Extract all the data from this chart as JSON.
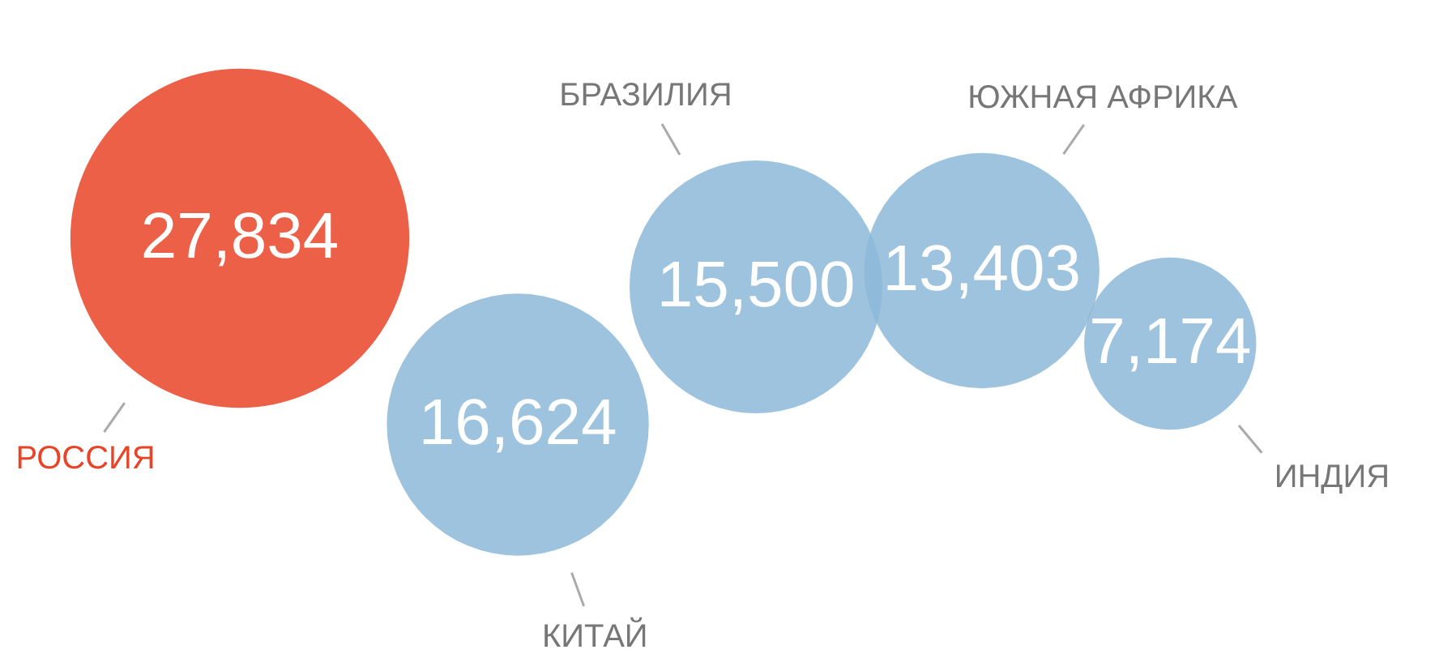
{
  "chart_data": {
    "type": "other",
    "categories": [
      "РОССИЯ",
      "КИТАЙ",
      "БРАЗИЛИЯ",
      "ЮЖНАЯ АФРИКА",
      "ИНДИЯ"
    ],
    "values": [
      27834,
      16624,
      15500,
      13403,
      7174
    ],
    "colors": [
      "#e84427",
      "#8db8d8",
      "#8db8d8",
      "#8db8d8",
      "#8db8d8"
    ],
    "value_labels": [
      "27,834",
      "16,624",
      "15,500",
      "13,403",
      "7,174"
    ]
  }
}
